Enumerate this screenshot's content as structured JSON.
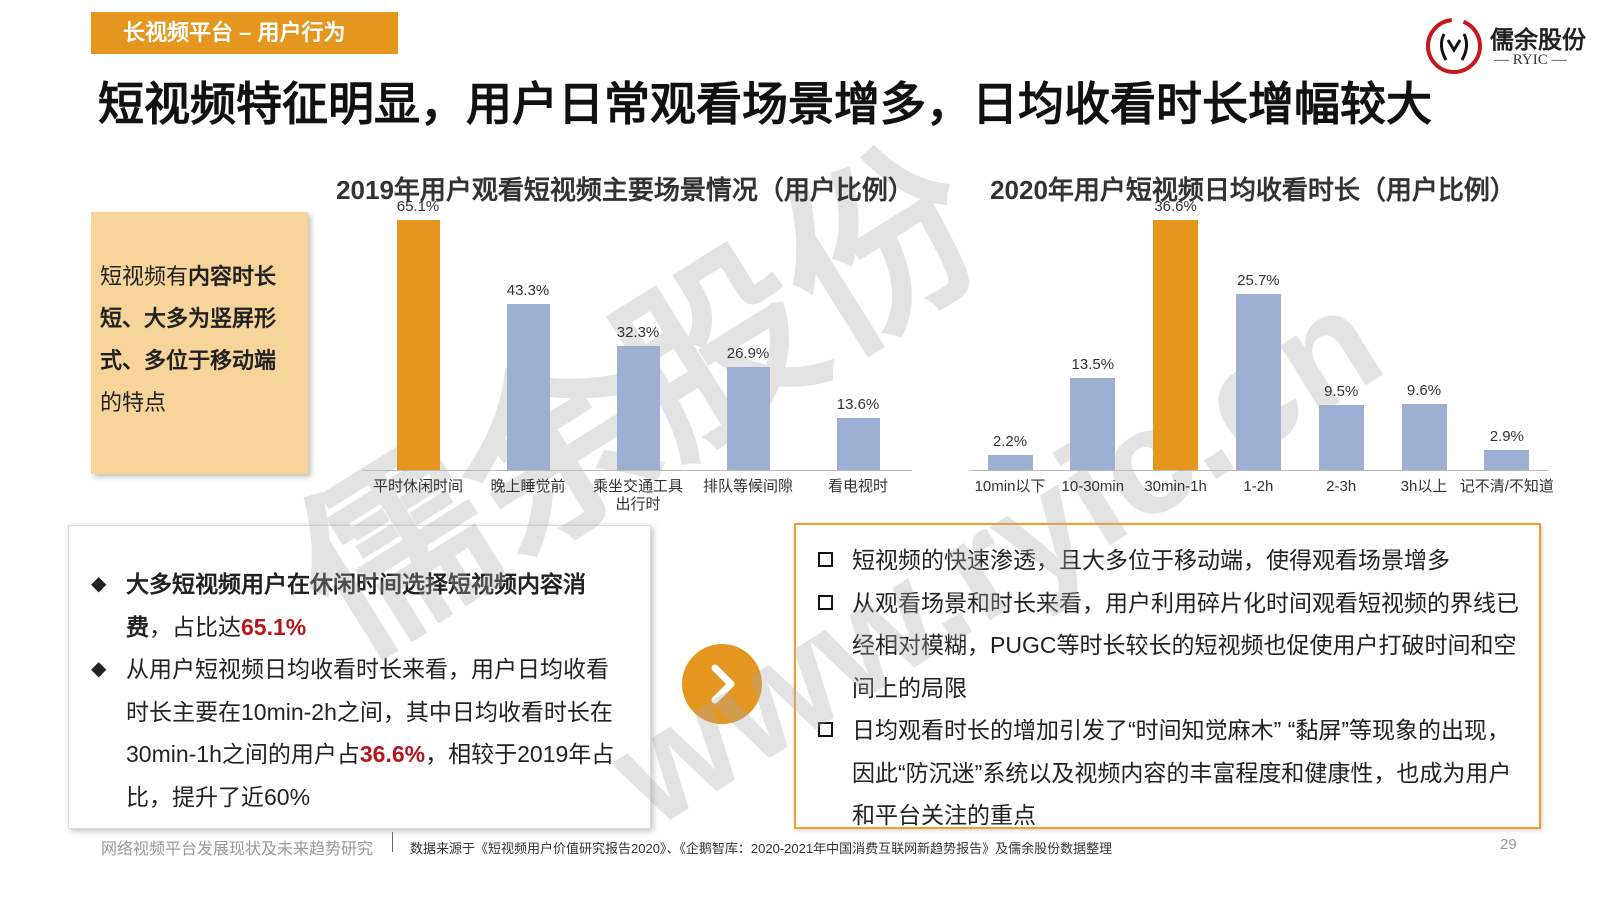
{
  "header": {
    "tag": "长视频平台 – 用户行为",
    "title": "短视频特征明显，用户日常观看场景增多，日均收看时长增幅较大",
    "logo_name": "儒余股份",
    "logo_sub": "— RYIC —"
  },
  "chart_data": [
    {
      "type": "bar",
      "title": "2019年用户观看短视频主要场景情况（用户比例）",
      "categories": [
        "平时休闲时间",
        "晚上睡觉前",
        "乘坐交通工具出行时",
        "排队等候间隙",
        "看电视时"
      ],
      "values": [
        65.1,
        43.3,
        32.3,
        26.9,
        13.6
      ],
      "value_labels": [
        "65.1%",
        "43.3%",
        "32.3%",
        "26.9%",
        "13.6%"
      ],
      "colors": [
        "#E5961E",
        "#9DB0D3",
        "#9DB0D3",
        "#9DB0D3",
        "#9DB0D3"
      ]
    },
    {
      "type": "bar",
      "title": "2020年用户短视频日均收看时长（用户比例）",
      "categories": [
        "10min以下",
        "10-30min",
        "30min-1h",
        "1-2h",
        "2-3h",
        "3h以上",
        "记不清/不知道"
      ],
      "values": [
        2.2,
        13.5,
        36.6,
        25.7,
        9.5,
        9.6,
        2.9
      ],
      "value_labels": [
        "2.2%",
        "13.5%",
        "36.6%",
        "25.7%",
        "9.5%",
        "9.6%",
        "2.9%"
      ],
      "colors": [
        "#9DB0D3",
        "#9DB0D3",
        "#E5961E",
        "#9DB0D3",
        "#9DB0D3",
        "#9DB0D3",
        "#9DB0D3"
      ]
    }
  ],
  "side_note": [
    {
      "text": "短视频有",
      "bold": false
    },
    {
      "text": "内容时长短、大多为竖屏形式、多位于移动端",
      "bold": true
    },
    {
      "text": "的特点",
      "bold": false
    }
  ],
  "summary": [
    [
      {
        "text": "大多短视频用户在休闲时间选择短视频内容消费",
        "bold": true,
        "red": false
      },
      {
        "text": "，占比达",
        "bold": false,
        "red": false
      },
      {
        "text": "65.1%",
        "bold": true,
        "red": true
      }
    ],
    [
      {
        "text": "从用户短视频日均收看时长来看，用户日均收看时长主要在10min-2h之间，其中日均收看时长在30min-1h之间的用户占",
        "bold": false,
        "red": false
      },
      {
        "text": "36.6%",
        "bold": true,
        "red": true
      },
      {
        "text": "，相较于2019年占比，提升了近60%",
        "bold": false,
        "red": false
      }
    ]
  ],
  "insights": [
    "短视频的快速渗透，且大多位于移动端，使得观看场景增多",
    "从观看场景和时长来看，用户利用碎片化时间观看短视频的界线已经相对模糊，PUGC等时长较长的短视频也促使用户打破时间和空间上的局限",
    "日均观看时长的增加引发了“时间知觉麻木” “黏屏”等现象的出现，因此“防沉迷”系统以及视频内容的丰富程度和健康性，也成为用户和平台关注的重点"
  ],
  "footer": {
    "topic": "网络视频平台发展现状及未来趋势研究",
    "source": "数据来源于《短视频用户价值研究报告2020》、《企鹅智库：2020-2021年中国消费互联网新趋势报告》及儒余股份数据整理",
    "page": 29
  },
  "watermark": {
    "name": "儒余股份",
    "url": "www.ryic.cn"
  }
}
